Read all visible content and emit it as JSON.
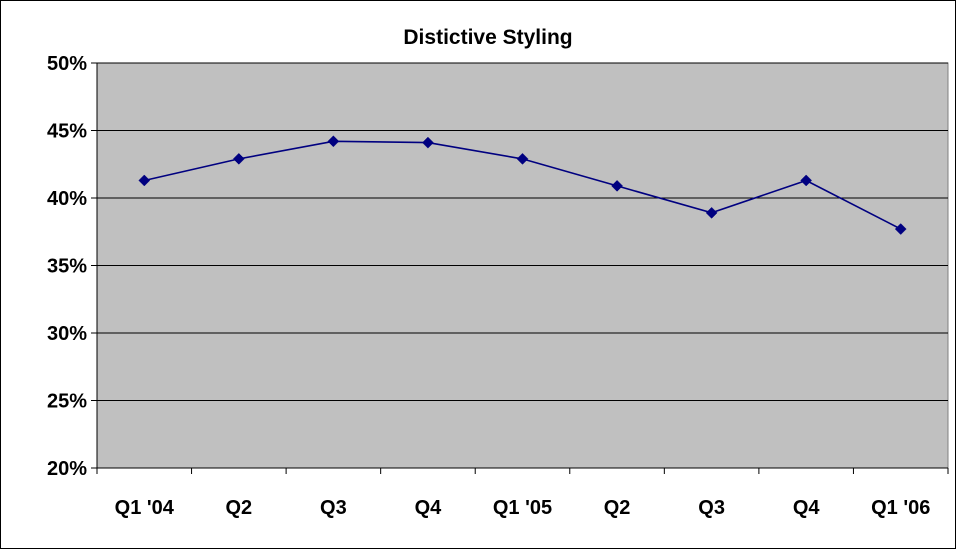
{
  "chart_data": {
    "type": "line",
    "title": "Distictive Styling",
    "xlabel": "",
    "ylabel": "",
    "categories": [
      "Q1 '04",
      "Q2",
      "Q3",
      "Q4",
      "Q1 '05",
      "Q2",
      "Q3",
      "Q4",
      "Q1 '06"
    ],
    "series": [
      {
        "values": [
          41.3,
          42.9,
          44.2,
          44.1,
          42.9,
          40.9,
          38.9,
          41.3,
          37.7
        ]
      }
    ],
    "ylim": [
      20,
      50
    ],
    "yticks": [
      20,
      25,
      30,
      35,
      40,
      45,
      50
    ],
    "ytick_labels": [
      "20%",
      "25%",
      "30%",
      "35%",
      "40%",
      "45%",
      "50%"
    ],
    "grid": true,
    "legend": "none",
    "colors": {
      "plot_background": "#c0c0c0",
      "series_line": "#000080",
      "gridline": "#000000",
      "border": "#000000"
    },
    "marker": "diamond"
  }
}
